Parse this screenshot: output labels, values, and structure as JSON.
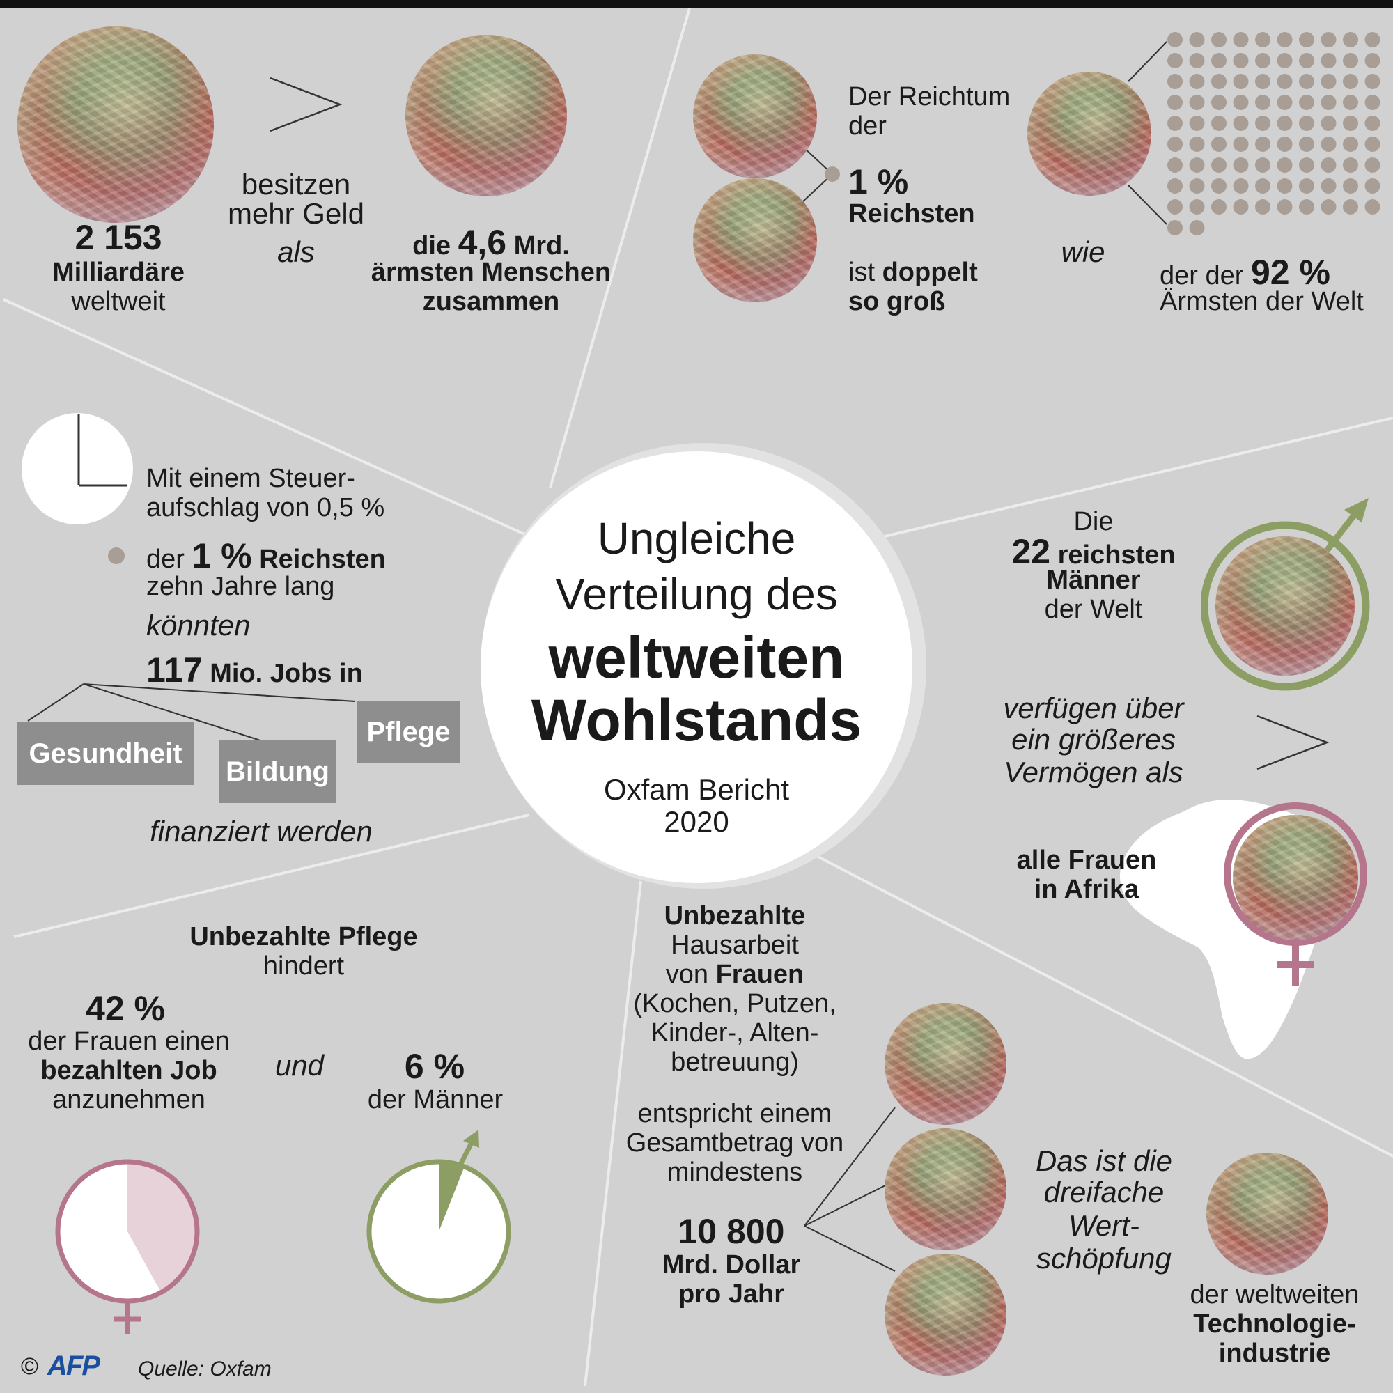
{
  "title": {
    "line1": "Ungleiche",
    "line2": "Verteilung des",
    "line3": "weltweiten",
    "line4": "Wohlstands",
    "sub1": "Oxfam Bericht",
    "sub2": "2020"
  },
  "s1": {
    "count": "2 153",
    "count_label1": "Milliardäre",
    "count_label2": "weltweit",
    "verb1": "besitzen",
    "verb2": "mehr Geld",
    "als": "als",
    "die": "die",
    "num": "4,6",
    "mrd": "Mrd.",
    "poor1": "ärmsten Menschen",
    "poor2": "zusammen",
    "symbol": ">"
  },
  "s2": {
    "line1": "Der Reichtum",
    "line2": "der",
    "pct": "1 %",
    "reichsten": "Reichsten",
    "ist": "ist",
    "doppelt": "doppelt",
    "so_gross": "so groß",
    "wie": "wie",
    "derder": "der der",
    "pct92": "92 %",
    "aermsten": "Ärmsten der Welt"
  },
  "s3": {
    "l1": "Mit einem Steuer-",
    "l2": "aufschlag von 0,5 %",
    "der": "der",
    "pct": "1 %",
    "reichsten": "Reichsten",
    "zehn": "zehn Jahre lang",
    "koennten": "könnten",
    "jobs_num": "117",
    "jobs_text": "Mio. Jobs in",
    "box1": "Gesundheit",
    "box2": "Bildung",
    "box3": "Pflege",
    "fin": "finanziert werden"
  },
  "s4": {
    "die": "Die",
    "num": "22",
    "reichsten": "reichsten",
    "maenner": "Männer",
    "welt": "der Welt",
    "v1": "verfügen über",
    "v2": "ein größeres",
    "v3": "Vermögen als",
    "frauen1": "alle Frauen",
    "frauen2": "in Afrika",
    "symbol": ">"
  },
  "s5": {
    "t1": "Unbezahlte Pflege",
    "t2": "hindert",
    "pct42": "42 %",
    "f1": "der Frauen einen",
    "f2": "bezahlten Job",
    "f3": "anzunehmen",
    "und": "und",
    "pct6": "6 %",
    "m1": "der Männer",
    "women_share": 0.42,
    "men_share": 0.06
  },
  "s6": {
    "h1": "Unbezahlte",
    "h2": "Hausarbeit",
    "h3a": "von",
    "h3b": "Frauen",
    "h4": "(Kochen, Putzen,",
    "h5": "Kinder-, Alten-",
    "h6": "betreuung)",
    "e1": "entspricht einem",
    "e2": "Gesamtbetrag von",
    "e3": "mindestens",
    "amount": "10 800",
    "unit1": "Mrd. Dollar",
    "unit2": "pro Jahr",
    "d1": "Das ist die",
    "d2": "dreifache",
    "d3": "Wert-",
    "d4": "schöpfung",
    "tech1": "der weltweiten",
    "tech2": "Technologie-",
    "tech3": "industrie"
  },
  "footer": {
    "copyright": "©",
    "agency": "AFP",
    "source": "Quelle: Oxfam"
  },
  "colors": {
    "background": "#d1d1d1",
    "dot": "#a89e95",
    "female": "#b5758d",
    "male": "#8c9e64",
    "box": "#8e8e8e"
  }
}
